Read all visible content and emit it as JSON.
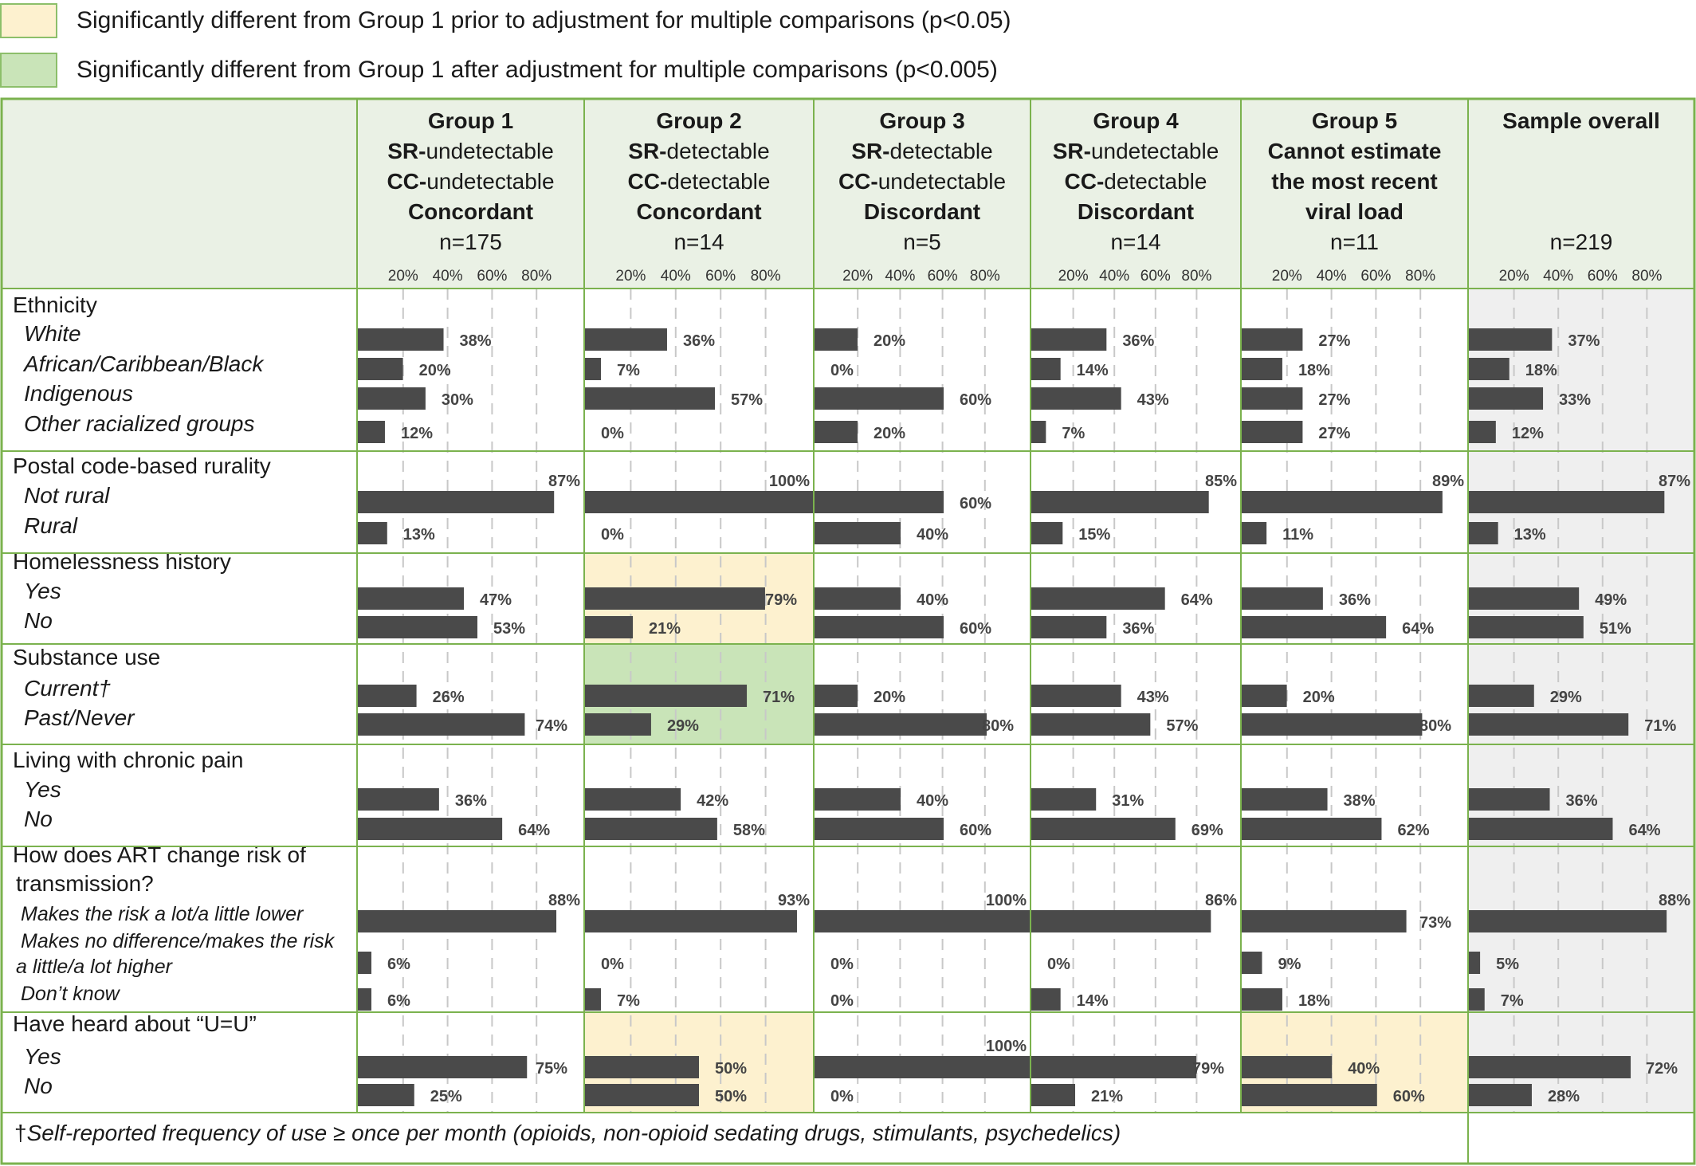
{
  "legend": {
    "items": [
      {
        "color": "#fdf1cf",
        "label": "Significantly different from Group 1 prior to adjustment for multiple comparisons (p<0.05)"
      },
      {
        "color": "#c9e4b8",
        "label": "Significantly different from Group 1 after adjustment for multiple comparisons (p<0.005)"
      }
    ]
  },
  "colors": {
    "grid": "#7bb24e",
    "bar": "#4a4a4a",
    "header_fill": "#eaf1e5",
    "overall_fill": "#efefef",
    "sig_pre": "#fdf1cf",
    "sig_post": "#c9e4b8"
  },
  "footnote": {
    "dagger": "†",
    "text": "Self-reported frequency of use ≥ once per month (opioids, non-opioid sedating drugs, stimulants, psychedelics)"
  },
  "chart_data": {
    "type": "bar",
    "axis_ticks": [
      "20%",
      "40%",
      "60%",
      "80%"
    ],
    "groups": [
      {
        "lines": [
          {
            "t": "Group 1",
            "b": true
          },
          {
            "p": "SR-",
            "t": "undetectable"
          },
          {
            "p": "CC-",
            "t": "undetectable"
          },
          {
            "t": "Concordant",
            "b": true
          },
          {
            "t": "n=175"
          }
        ]
      },
      {
        "lines": [
          {
            "t": "Group 2",
            "b": true
          },
          {
            "p": "SR-",
            "t": "detectable"
          },
          {
            "p": "CC-",
            "t": "detectable"
          },
          {
            "t": "Concordant",
            "b": true
          },
          {
            "t": "n=14"
          }
        ]
      },
      {
        "lines": [
          {
            "t": "Group 3",
            "b": true
          },
          {
            "p": "SR-",
            "t": "detectable"
          },
          {
            "p": "CC-",
            "t": "undetectable"
          },
          {
            "t": "Discordant",
            "b": true
          },
          {
            "t": "n=5"
          }
        ]
      },
      {
        "lines": [
          {
            "t": "Group 4",
            "b": true
          },
          {
            "p": "SR-",
            "t": "undetectable"
          },
          {
            "p": "CC-",
            "t": "detectable"
          },
          {
            "t": "Discordant",
            "b": true
          },
          {
            "t": "n=14"
          }
        ]
      },
      {
        "lines": [
          {
            "t": "Group 5",
            "b": true
          },
          {
            "t": "Cannot estimate",
            "b": true
          },
          {
            "t": "the most recent",
            "b": true
          },
          {
            "t": "viral load",
            "b": true
          },
          {
            "t": "n=11"
          }
        ]
      },
      {
        "lines": [
          {
            "t": "Sample overall",
            "b": true
          },
          {
            "t": ""
          },
          {
            "t": ""
          },
          {
            "t": ""
          },
          {
            "t": "n=219"
          }
        ]
      }
    ],
    "sections": [
      {
        "title": "Ethnicity",
        "highlight": [
          null,
          null,
          null,
          null,
          null
        ],
        "rows": [
          {
            "label": "White",
            "values": [
              38,
              36,
              20,
              36,
              27,
              37
            ]
          },
          {
            "label": "African/Caribbean/Black",
            "values": [
              20,
              7,
              0,
              14,
              18,
              18
            ]
          },
          {
            "label": "Indigenous",
            "values": [
              30,
              57,
              60,
              43,
              27,
              33
            ]
          },
          {
            "label": "Other racialized groups",
            "values": [
              12,
              0,
              20,
              7,
              27,
              12
            ]
          }
        ]
      },
      {
        "title": "Postal code-based rurality",
        "highlight": [
          null,
          null,
          null,
          null,
          null
        ],
        "rows": [
          {
            "label": "Not rural",
            "values": [
              87,
              100,
              60,
              85,
              89,
              87
            ]
          },
          {
            "label": "Rural",
            "values": [
              13,
              0,
              40,
              15,
              11,
              13
            ]
          }
        ]
      },
      {
        "title": "Homelessness history",
        "highlight": [
          null,
          "pre",
          null,
          null,
          null
        ],
        "rows": [
          {
            "label": "Yes",
            "values": [
              47,
              79,
              40,
              64,
              36,
              49
            ]
          },
          {
            "label": "No",
            "values": [
              53,
              21,
              60,
              36,
              64,
              51
            ]
          }
        ]
      },
      {
        "title": "Substance use",
        "highlight": [
          null,
          "post",
          null,
          null,
          null
        ],
        "rows": [
          {
            "label": "Current†",
            "values": [
              26,
              71,
              20,
              43,
              20,
              29
            ]
          },
          {
            "label": "Past/Never",
            "values": [
              74,
              29,
              80,
              57,
              80,
              71
            ]
          }
        ]
      },
      {
        "title": "Living with chronic pain",
        "highlight": [
          null,
          null,
          null,
          null,
          null
        ],
        "rows": [
          {
            "label": "Yes",
            "values": [
              36,
              42,
              40,
              31,
              38,
              36
            ]
          },
          {
            "label": "No",
            "values": [
              64,
              58,
              60,
              69,
              62,
              64
            ]
          }
        ]
      },
      {
        "title": "How does ART change risk  of",
        "title2": "transmission?",
        "highlight": [
          null,
          null,
          null,
          null,
          null
        ],
        "rows": [
          {
            "label": "Makes the risk a lot/a little lower",
            "values": [
              88,
              93,
              100,
              86,
              73,
              88
            ]
          },
          {
            "label": "Makes no difference/makes the risk",
            "label2": "a little/a lot higher",
            "values": [
              6,
              0,
              0,
              0,
              9,
              5
            ]
          },
          {
            "label": "Don’t know",
            "values": [
              6,
              7,
              0,
              14,
              18,
              7
            ]
          }
        ]
      },
      {
        "title": "Have heard about “U=U”",
        "highlight": [
          null,
          "pre",
          null,
          null,
          "pre"
        ],
        "rows": [
          {
            "label": "Yes",
            "values": [
              75,
              50,
              100,
              79,
              40,
              72
            ]
          },
          {
            "label": "No",
            "values": [
              25,
              50,
              0,
              21,
              60,
              28
            ]
          }
        ]
      }
    ]
  }
}
